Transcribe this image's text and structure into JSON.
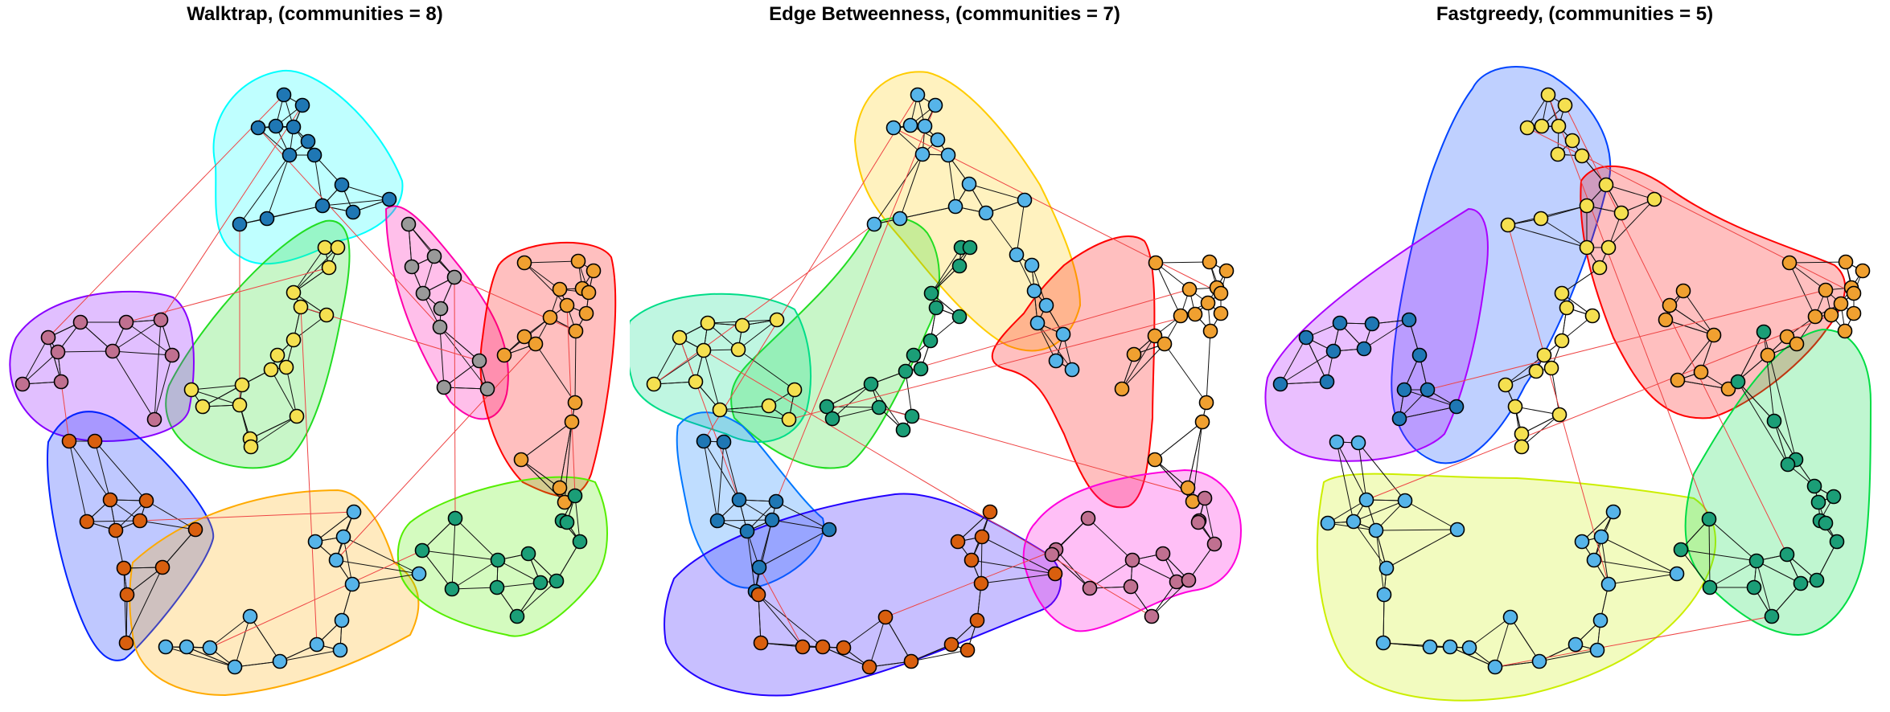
{
  "panels": [
    {
      "title": "Walktrap, (communities = 8)",
      "communities": [
        {
          "id": "c1",
          "color": "#00ffff",
          "node_color": "#1f77b4"
        },
        {
          "id": "c2",
          "color": "#ff00aa",
          "node_color": "#999999"
        },
        {
          "id": "c3",
          "color": "#ff0000",
          "node_color": "#f0a030"
        },
        {
          "id": "c4",
          "color": "#22dd22",
          "node_color": "#f5e050"
        },
        {
          "id": "c5",
          "color": "#8800ff",
          "node_color": "#c07090"
        },
        {
          "id": "c6",
          "color": "#0022ff",
          "node_color": "#d95f0e"
        },
        {
          "id": "c7",
          "color": "#ffaa00",
          "node_color": "#56b4e9"
        },
        {
          "id": "c8",
          "color": "#55ee00",
          "node_color": "#1b9e77"
        }
      ]
    },
    {
      "title": "Edge Betweenness, (communities = 7)",
      "communities": [
        {
          "id": "c1",
          "color": "#ffcc00",
          "node_color": "#56b4e9"
        },
        {
          "id": "c2",
          "color": "#ff0000",
          "node_color": "#f0a030"
        },
        {
          "id": "c3",
          "color": "#22dd22",
          "node_color": "#1b9e77"
        },
        {
          "id": "c4",
          "color": "#00dd88",
          "node_color": "#f5e050"
        },
        {
          "id": "c5",
          "color": "#0077ff",
          "node_color": "#1f77b4"
        },
        {
          "id": "c6",
          "color": "#2200ff",
          "node_color": "#d95f0e"
        },
        {
          "id": "c7",
          "color": "#ff00dd",
          "node_color": "#c07090"
        }
      ]
    },
    {
      "title": "Fastgreedy, (communities = 5)",
      "communities": [
        {
          "id": "c1",
          "color": "#0044ff",
          "node_color": "#f5e050"
        },
        {
          "id": "c2",
          "color": "#ff0000",
          "node_color": "#f0a030"
        },
        {
          "id": "c3",
          "color": "#aa00ff",
          "node_color": "#1f77b4"
        },
        {
          "id": "c4",
          "color": "#ccee00",
          "node_color": "#56b4e9"
        },
        {
          "id": "c5",
          "color": "#00dd44",
          "node_color": "#1b9e77"
        }
      ]
    }
  ]
}
